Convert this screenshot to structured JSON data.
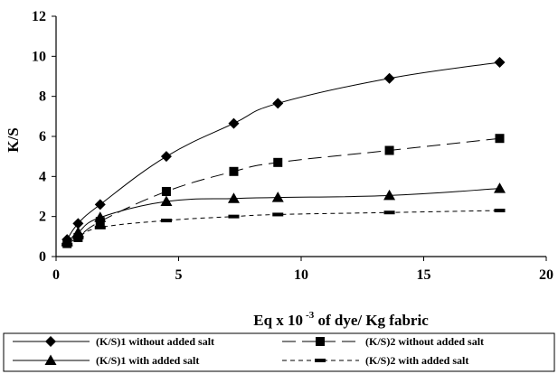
{
  "chart_data": {
    "type": "line",
    "ylabel": "K/S",
    "xlabel_main": "Eq x 10",
    "xlabel_sup": "-3",
    "xlabel_rest": " of dye/ Kg fabric",
    "xlim": [
      0,
      20
    ],
    "ylim": [
      0,
      12
    ],
    "x_ticks": [
      0,
      5,
      10,
      15,
      20
    ],
    "y_ticks": [
      0,
      2,
      4,
      6,
      8,
      10,
      12
    ],
    "grid": false,
    "legend_position": "bottom",
    "series": [
      {
        "name": "(K/S)1 without added salt",
        "marker": "diamond",
        "dash": "solid",
        "x": [
          0.45,
          0.9,
          1.8,
          4.5,
          7.25,
          9.05,
          13.6,
          18.1
        ],
        "y": [
          0.85,
          1.65,
          2.6,
          5.0,
          6.65,
          7.65,
          8.9,
          9.7
        ]
      },
      {
        "name": "(K/S)2 without added salt",
        "marker": "square",
        "dash": "long-dash",
        "x": [
          0.45,
          0.9,
          1.8,
          4.5,
          7.25,
          9.05,
          13.6,
          18.1
        ],
        "y": [
          0.65,
          0.95,
          1.75,
          3.25,
          4.25,
          4.7,
          5.3,
          5.9
        ]
      },
      {
        "name": "(K/S)1 with added salt",
        "marker": "triangle",
        "dash": "solid",
        "x": [
          0.45,
          0.9,
          1.8,
          4.5,
          7.25,
          9.05,
          13.6,
          18.1
        ],
        "y": [
          0.75,
          1.2,
          1.95,
          2.75,
          2.9,
          2.95,
          3.05,
          3.4
        ]
      },
      {
        "name": "(K/S)2 with added salt",
        "marker": "dash",
        "dash": "short-dash",
        "x": [
          0.45,
          0.9,
          1.8,
          4.5,
          7.25,
          9.05,
          13.6,
          18.1
        ],
        "y": [
          0.6,
          0.95,
          1.45,
          1.8,
          2.0,
          2.1,
          2.2,
          2.3
        ]
      }
    ]
  }
}
